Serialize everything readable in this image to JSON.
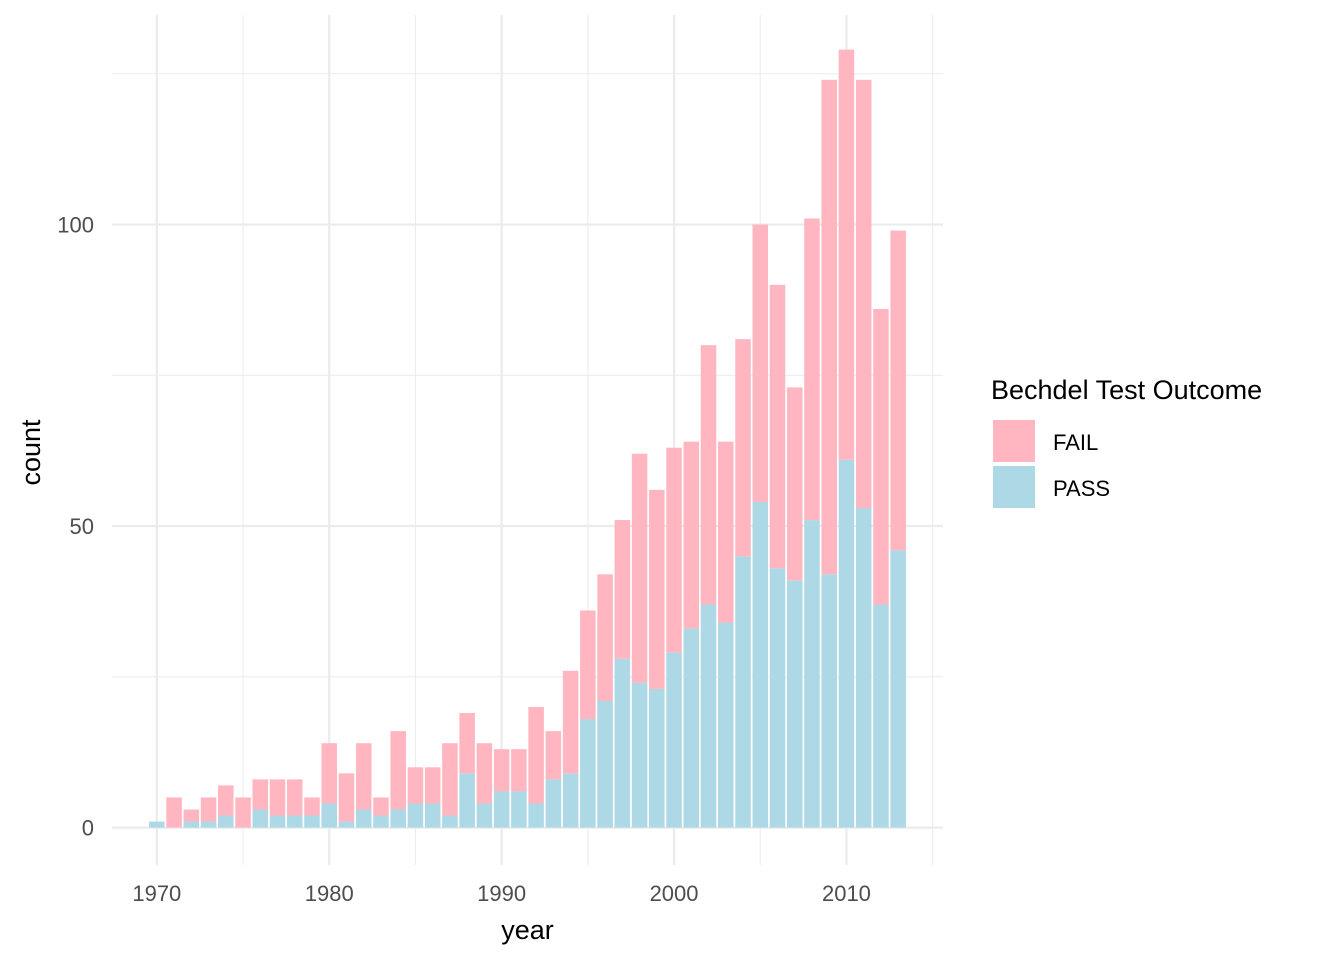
{
  "chart_data": {
    "type": "bar",
    "stacked": true,
    "xlabel": "year",
    "ylabel": "count",
    "xlim": [
      1967.4,
      2015.6
    ],
    "ylim": [
      -6.2,
      130.6
    ],
    "x_ticks": [
      1970,
      1980,
      1990,
      2000,
      2010
    ],
    "x_tick_labels": [
      "1970",
      "1980",
      "1990",
      "2000",
      "2010"
    ],
    "y_ticks": [
      0,
      50,
      100
    ],
    "y_tick_labels": [
      "0",
      "50",
      "100"
    ],
    "grid": true,
    "legend": {
      "title": "Bechdel Test Outcome",
      "placement": "right",
      "entries": [
        {
          "label": "FAIL",
          "color": "#FFB6C1"
        },
        {
          "label": "PASS",
          "color": "#ADD8E6"
        }
      ]
    },
    "x": [
      1970,
      1971,
      1972,
      1973,
      1974,
      1975,
      1976,
      1977,
      1978,
      1979,
      1980,
      1981,
      1982,
      1983,
      1984,
      1985,
      1986,
      1987,
      1988,
      1989,
      1990,
      1991,
      1992,
      1993,
      1994,
      1995,
      1996,
      1997,
      1998,
      1999,
      2000,
      2001,
      2002,
      2003,
      2004,
      2005,
      2006,
      2007,
      2008,
      2009,
      2010,
      2011,
      2012,
      2013
    ],
    "series": [
      {
        "name": "PASS",
        "color": "#ADD8E6",
        "values": [
          1,
          0,
          1,
          1,
          2,
          0,
          3,
          2,
          2,
          2,
          4,
          1,
          3,
          2,
          3,
          4,
          4,
          2,
          9,
          4,
          6,
          6,
          4,
          8,
          9,
          18,
          21,
          28,
          24,
          23,
          29,
          33,
          37,
          34,
          45,
          54,
          43,
          41,
          51,
          42,
          61,
          53,
          37,
          46
        ]
      },
      {
        "name": "FAIL",
        "color": "#FFB6C1",
        "values": [
          0,
          5,
          2,
          4,
          5,
          5,
          5,
          6,
          6,
          3,
          10,
          8,
          11,
          3,
          13,
          6,
          6,
          12,
          10,
          10,
          7,
          7,
          16,
          8,
          17,
          18,
          21,
          23,
          38,
          33,
          34,
          31,
          43,
          30,
          36,
          46,
          47,
          32,
          50,
          82,
          68,
          71,
          49,
          53
        ]
      }
    ]
  }
}
